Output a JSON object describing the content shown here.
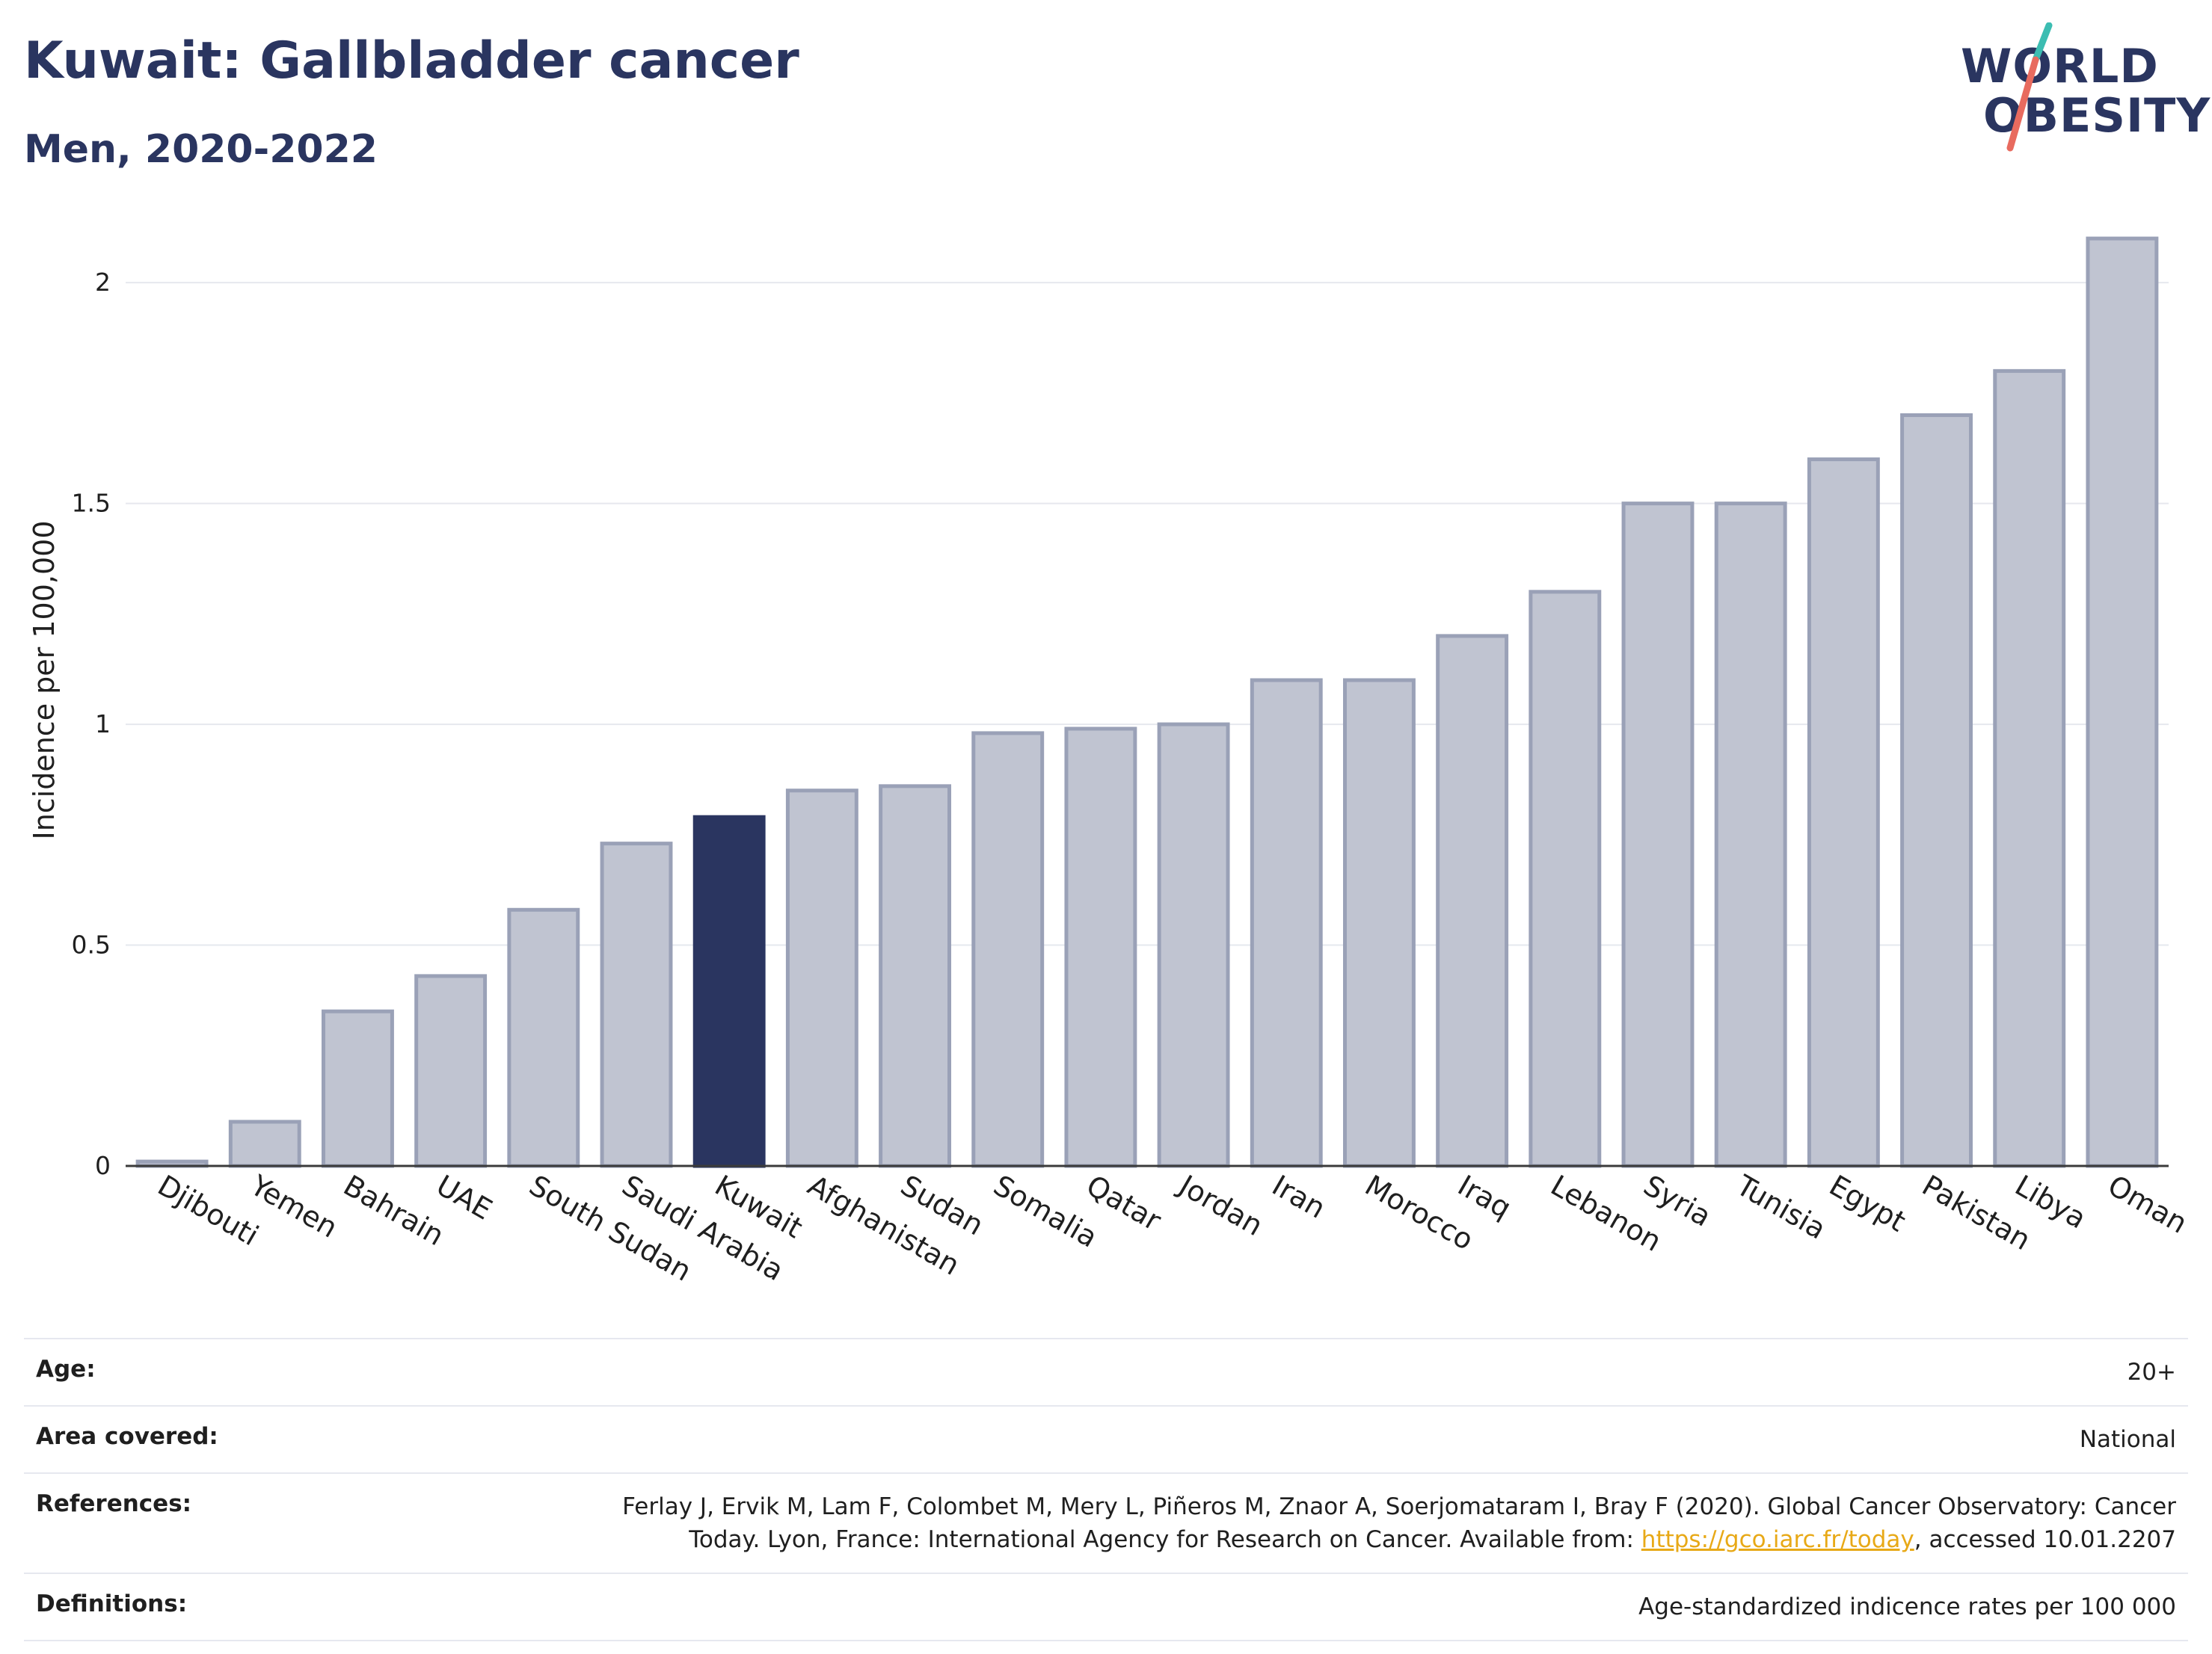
{
  "header": {
    "title": "Kuwait: Gallbladder cancer",
    "subtitle": "Men, 2020-2022"
  },
  "logo": {
    "line1": "WORLD",
    "line2": "OBESITY"
  },
  "colors": {
    "highlight": "#2a3560",
    "bar_fill": "#c0c4d1",
    "bar_stroke": "#9aa1b7",
    "title": "#2a3560",
    "link": "#e8a917",
    "logo_teal": "#3cbdb2",
    "logo_coral": "#e86b5f"
  },
  "chart_data": {
    "type": "bar",
    "ylabel": "Incidence per 100,000",
    "ylim": [
      0,
      2.2
    ],
    "yticks": [
      0,
      0.5,
      1,
      1.5,
      2
    ],
    "ytick_labels": [
      "0",
      "0.5",
      "1",
      "1.5",
      "2"
    ],
    "grid": true,
    "highlight": "Kuwait",
    "categories": [
      "Djibouti",
      "Yemen",
      "Bahrain",
      "UAE",
      "South Sudan",
      "Saudi Arabia",
      "Kuwait",
      "Afghanistan",
      "Sudan",
      "Somalia",
      "Qatar",
      "Jordan",
      "Iran",
      "Morocco",
      "Iraq",
      "Lebanon",
      "Syria",
      "Tunisia",
      "Egypt",
      "Pakistan",
      "Libya",
      "Oman"
    ],
    "values": [
      0.01,
      0.1,
      0.35,
      0.43,
      0.58,
      0.73,
      0.79,
      0.85,
      0.86,
      0.98,
      0.99,
      1.0,
      1.1,
      1.1,
      1.2,
      1.3,
      1.5,
      1.5,
      1.6,
      1.7,
      1.8,
      2.1
    ]
  },
  "info": {
    "age_label": "Age:",
    "age_value": "20+",
    "area_label": "Area covered:",
    "area_value": "National",
    "references_label": "References:",
    "references_text_1": "Ferlay J, Ervik M, Lam F, Colombet M, Mery L, Piñeros M, Znaor A, Soerjomataram I, Bray F (2020). Global Cancer Observatory: Cancer Today. Lyon, France: International Agency for Research on Cancer. Available from: ",
    "references_link": "https://gco.iarc.fr/today",
    "references_text_2": ", accessed 10.01.2207",
    "definitions_label": "Definitions:",
    "definitions_value": "Age-standardized indicence rates per 100 000"
  }
}
